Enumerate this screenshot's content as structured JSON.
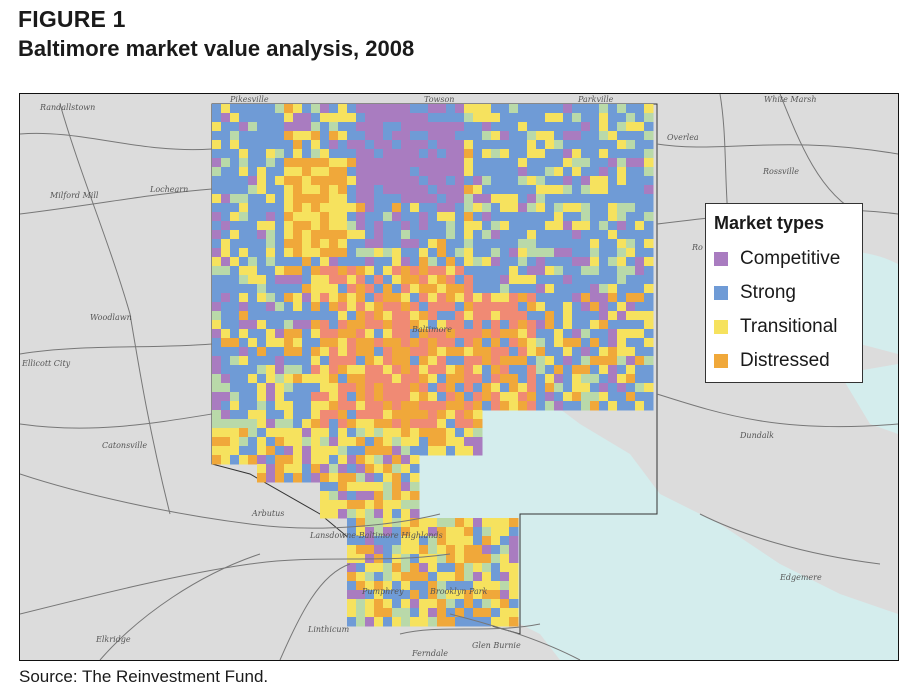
{
  "figure": {
    "label": "FIGURE 1",
    "title": "Baltimore market value analysis, 2008",
    "source": "Source: The Reinvestment Fund."
  },
  "legend": {
    "title": "Market types",
    "items": [
      {
        "label": "Competitive",
        "color": "#a97cc0"
      },
      {
        "label": "Strong",
        "color": "#6f9bd6"
      },
      {
        "label": "Transitional",
        "color": "#f6e25e"
      },
      {
        "label": "Distressed",
        "color": "#f0a83a"
      }
    ]
  },
  "colors": {
    "land": "#dcdcdc",
    "water": "#d4eded",
    "park": "#b9d9a9",
    "distressed_severe": "#f08a74",
    "roads": "#777777"
  },
  "places": [
    "Randallstown",
    "Pikesville",
    "Towson",
    "Parkville",
    "White Marsh",
    "Overlea",
    "Rossville",
    "Milford Mill",
    "Lochearn",
    "Woodlawn",
    "Ellicott City",
    "Catonsville",
    "Baltimore",
    "Arbutus",
    "Lansdowne-Baltimore Highlands",
    "Dundalk",
    "Edgemere",
    "Pumphrey",
    "Brooklyn Park",
    "Linthicum",
    "Elkridge",
    "Ferndale",
    "Glen Burnie",
    "Ro"
  ]
}
